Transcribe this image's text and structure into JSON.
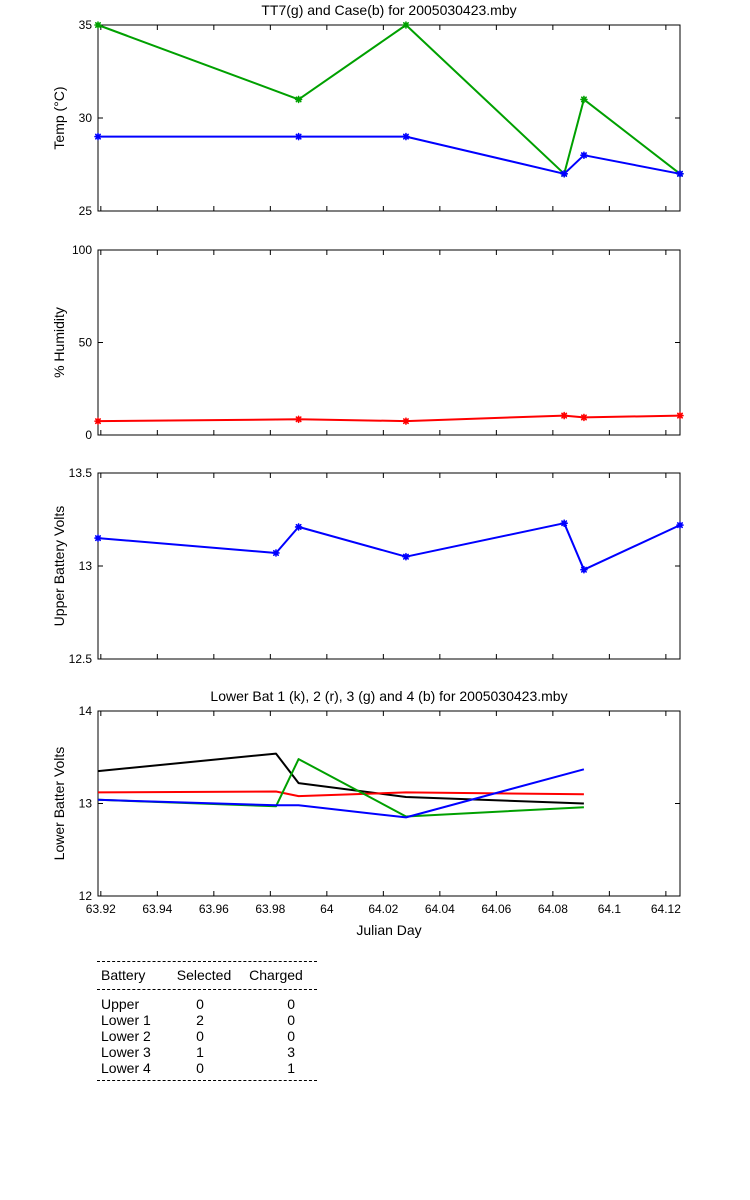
{
  "chart_data": [
    {
      "type": "line",
      "title": "TT7(g) and Case(b) for 2005030423.mby",
      "xlabel": "",
      "ylabel": "Temp  (°C)",
      "xlim": [
        63.919,
        64.125
      ],
      "ylim": [
        25,
        35
      ],
      "xticks": [
        63.92,
        63.94,
        63.96,
        63.98,
        64,
        64.02,
        64.04,
        64.06,
        64.08,
        64.1,
        64.12
      ],
      "yticks": [
        25,
        30,
        35
      ],
      "yticklabels": [
        "25",
        "30",
        "35"
      ],
      "show_xticklabels": false,
      "markers": true,
      "series": [
        {
          "color": "#00a000",
          "x": [
            63.919,
            63.99,
            64.028,
            64.084,
            64.091,
            64.125
          ],
          "y": [
            35,
            31,
            35,
            27,
            31,
            27
          ]
        },
        {
          "color": "#0000ff",
          "x": [
            63.919,
            63.99,
            64.028,
            64.084,
            64.091,
            64.125
          ],
          "y": [
            29,
            29,
            29,
            27,
            28,
            27
          ]
        }
      ]
    },
    {
      "type": "line",
      "title": "",
      "xlabel": "",
      "ylabel": "% Humidity",
      "xlim": [
        63.919,
        64.125
      ],
      "ylim": [
        0,
        100
      ],
      "xticks": [
        63.92,
        63.94,
        63.96,
        63.98,
        64,
        64.02,
        64.04,
        64.06,
        64.08,
        64.1,
        64.12
      ],
      "yticks": [
        0,
        50,
        100
      ],
      "yticklabels": [
        "0",
        "50",
        "100"
      ],
      "show_xticklabels": false,
      "markers": true,
      "series": [
        {
          "color": "#ff0000",
          "x": [
            63.919,
            63.99,
            64.028,
            64.084,
            64.091,
            64.125
          ],
          "y": [
            7.5,
            8.5,
            7.5,
            10.5,
            9.5,
            10.5
          ]
        }
      ]
    },
    {
      "type": "line",
      "title": "",
      "xlabel": "",
      "ylabel": "Upper Battery Volts",
      "xlim": [
        63.919,
        64.125
      ],
      "ylim": [
        12.5,
        13.5
      ],
      "xticks": [
        63.92,
        63.94,
        63.96,
        63.98,
        64,
        64.02,
        64.04,
        64.06,
        64.08,
        64.1,
        64.12
      ],
      "yticks": [
        12.5,
        13,
        13.5
      ],
      "yticklabels": [
        "12.5",
        "13",
        "13.5"
      ],
      "show_xticklabels": false,
      "markers": true,
      "series": [
        {
          "color": "#0000ff",
          "x": [
            63.919,
            63.982,
            63.99,
            64.028,
            64.084,
            64.091,
            64.125
          ],
          "y": [
            13.15,
            13.07,
            13.21,
            13.05,
            13.23,
            12.98,
            13.22
          ]
        }
      ]
    },
    {
      "type": "line",
      "title": "Lower Bat 1 (k), 2 (r), 3 (g) and 4 (b) for 2005030423.mby",
      "xlabel": "Julian Day",
      "ylabel": "Lower Batter Volts",
      "xlim": [
        63.919,
        64.125
      ],
      "ylim": [
        12,
        14
      ],
      "xticks": [
        63.92,
        63.94,
        63.96,
        63.98,
        64,
        64.02,
        64.04,
        64.06,
        64.08,
        64.1,
        64.12
      ],
      "xticklabels": [
        "63.92",
        "63.94",
        "63.96",
        "63.98",
        "64",
        "64.02",
        "64.04",
        "64.06",
        "64.08",
        "64.1",
        "64.12"
      ],
      "yticks": [
        12,
        13,
        14
      ],
      "yticklabels": [
        "12",
        "13",
        "14"
      ],
      "show_xticklabels": true,
      "markers": false,
      "series": [
        {
          "color": "#000000",
          "x": [
            63.919,
            63.982,
            63.99,
            64.028,
            64.091
          ],
          "y": [
            13.35,
            13.54,
            13.22,
            13.07,
            13.0
          ]
        },
        {
          "color": "#ff0000",
          "x": [
            63.919,
            63.982,
            63.99,
            64.028,
            64.091
          ],
          "y": [
            13.12,
            13.13,
            13.08,
            13.12,
            13.1
          ]
        },
        {
          "color": "#00a000",
          "x": [
            63.919,
            63.982,
            63.99,
            64.028,
            64.091
          ],
          "y": [
            13.04,
            12.97,
            13.48,
            12.86,
            12.96
          ]
        },
        {
          "color": "#0000ff",
          "x": [
            63.919,
            63.982,
            63.99,
            64.028,
            64.091
          ],
          "y": [
            13.04,
            12.98,
            12.98,
            12.85,
            13.37
          ]
        }
      ]
    }
  ],
  "battery_table": {
    "headers": [
      "Battery",
      "Selected",
      "Charged"
    ],
    "rows": [
      {
        "battery": "Upper",
        "selected": "0",
        "charged": "0"
      },
      {
        "battery": "Lower 1",
        "selected": "2",
        "charged": "0"
      },
      {
        "battery": "Lower 2",
        "selected": "0",
        "charged": "0"
      },
      {
        "battery": "Lower 3",
        "selected": "1",
        "charged": "3"
      },
      {
        "battery": "Lower 4",
        "selected": "0",
        "charged": "1"
      }
    ]
  }
}
